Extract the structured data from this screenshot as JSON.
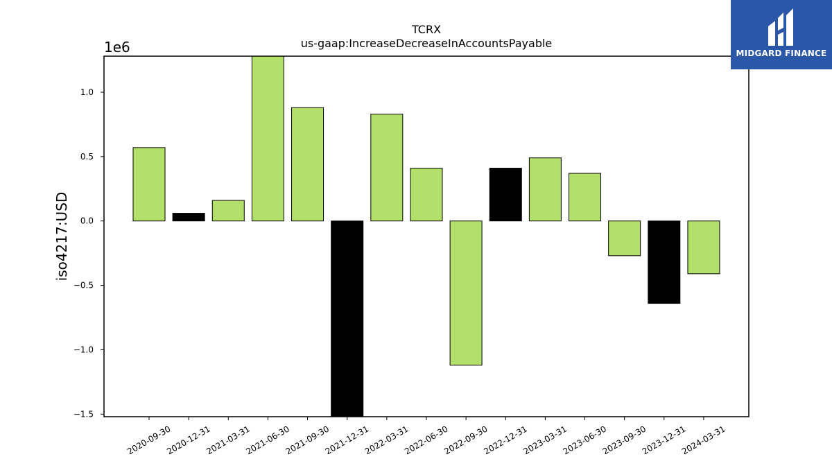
{
  "chart_data": {
    "type": "bar",
    "title": "TCRX",
    "subtitle": "us-gaap:IncreaseDecreaseInAccountsPayable",
    "ylabel": "iso4217:USD",
    "xlabel": "",
    "offset_label": "1e6",
    "ylim": [
      -1.52,
      1.28
    ],
    "yticks": [
      -1.5,
      -1.0,
      -0.5,
      0.0,
      0.5,
      1.0
    ],
    "ytick_labels": [
      "−1.5",
      "−1.0",
      "−0.5",
      "0.0",
      "0.5",
      "1.0"
    ],
    "categories": [
      "2020-09-30",
      "2020-12-31",
      "2021-03-31",
      "2021-06-30",
      "2021-09-30",
      "2021-12-31",
      "2022-03-31",
      "2022-06-30",
      "2022-09-30",
      "2022-12-31",
      "2023-03-31",
      "2023-06-30",
      "2023-09-30",
      "2023-12-31",
      "2024-03-31"
    ],
    "values": [
      0.57,
      0.06,
      0.16,
      1.29,
      0.88,
      -1.52,
      0.83,
      0.41,
      -1.12,
      0.41,
      0.49,
      0.37,
      -0.27,
      -0.64,
      -0.41
    ],
    "bar_colors": [
      "#b3df6b",
      "#000000",
      "#b3df6b",
      "#b3df6b",
      "#b3df6b",
      "#000000",
      "#b3df6b",
      "#b3df6b",
      "#b3df6b",
      "#000000",
      "#b3df6b",
      "#b3df6b",
      "#b3df6b",
      "#000000",
      "#b3df6b"
    ],
    "grid": false,
    "legend": "none"
  },
  "logo": {
    "text": "MIDGARD FINANCE",
    "background": "#2b57a8"
  }
}
